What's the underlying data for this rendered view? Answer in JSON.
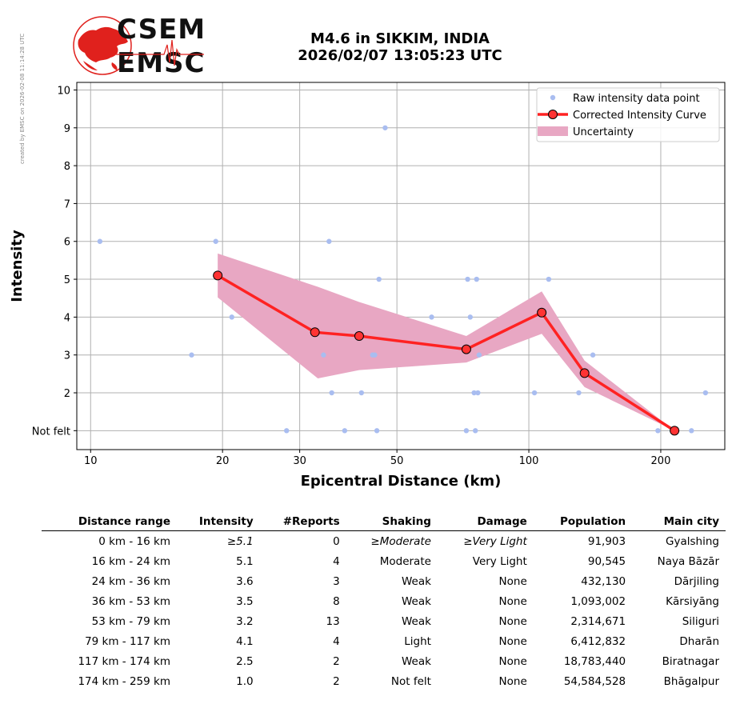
{
  "side_note": "created by EMSC on 2026-02-08 11:14:28 UTC",
  "logo": {
    "top_word": "CSEM",
    "bottom_word": "EMSC",
    "colors": {
      "red": "#e0211d",
      "dark": "#1a0a0a"
    }
  },
  "title": {
    "line1": "M4.6 in SIKKIM, INDIA",
    "line2": "2026/02/07 13:05:23 UTC"
  },
  "colors": {
    "raw": "#a9bdf0",
    "curve": "#ff2222",
    "marker": "#ff3333",
    "uncertainty": "#e8a7c3",
    "grid": "#b0b0b0"
  },
  "chart_data": {
    "type": "scatter",
    "xlabel": "Epicentral Distance (km)",
    "ylabel": "Intensity",
    "xscale": "log",
    "xlim": [
      9.3,
      280
    ],
    "ylim": [
      0.5,
      10.2
    ],
    "xticks": [
      10,
      20,
      30,
      50,
      100,
      200
    ],
    "yticks": [
      {
        "value": 1,
        "label": "Not felt"
      },
      {
        "value": 2,
        "label": "2"
      },
      {
        "value": 3,
        "label": "3"
      },
      {
        "value": 4,
        "label": "4"
      },
      {
        "value": 5,
        "label": "5"
      },
      {
        "value": 6,
        "label": "6"
      },
      {
        "value": 7,
        "label": "7"
      },
      {
        "value": 8,
        "label": "8"
      },
      {
        "value": 9,
        "label": "9"
      },
      {
        "value": 10,
        "label": "10"
      }
    ],
    "grid": true,
    "legend_placement": "top-right",
    "legend": [
      "Raw intensity data point",
      "Corrected Intensity Curve",
      "Uncertainty"
    ],
    "raw_points": [
      [
        10.5,
        6
      ],
      [
        17,
        3
      ],
      [
        19.3,
        6
      ],
      [
        21,
        4
      ],
      [
        28,
        1
      ],
      [
        34,
        3
      ],
      [
        35,
        6
      ],
      [
        35.5,
        2
      ],
      [
        38,
        1
      ],
      [
        41.5,
        2
      ],
      [
        44,
        3
      ],
      [
        44.5,
        3
      ],
      [
        45,
        1
      ],
      [
        45.5,
        5
      ],
      [
        47,
        9
      ],
      [
        60,
        4
      ],
      [
        72,
        1
      ],
      [
        72.5,
        5
      ],
      [
        73.5,
        4
      ],
      [
        75,
        2
      ],
      [
        75.5,
        1
      ],
      [
        76,
        5
      ],
      [
        76.5,
        2
      ],
      [
        77,
        3
      ],
      [
        103,
        2
      ],
      [
        111,
        5
      ],
      [
        130,
        2
      ],
      [
        140,
        3
      ],
      [
        197,
        1
      ],
      [
        235,
        1
      ],
      [
        253,
        2
      ]
    ],
    "series": [
      {
        "name": "Corrected Intensity Curve",
        "x": [
          19.5,
          32.5,
          41,
          72,
          107,
          134,
          215
        ],
        "y": [
          5.1,
          3.6,
          3.5,
          3.15,
          4.12,
          2.52,
          1.0
        ]
      }
    ],
    "uncertainty": {
      "x": [
        19.5,
        33,
        41,
        72,
        107,
        134,
        215
      ],
      "upper": [
        5.68,
        4.8,
        4.4,
        3.5,
        4.68,
        2.85,
        1.0
      ],
      "lower": [
        4.52,
        2.38,
        2.6,
        2.8,
        3.56,
        2.15,
        1.0
      ]
    }
  },
  "table": {
    "headers": [
      "Distance range",
      "Intensity",
      "#Reports",
      "Shaking",
      "Damage",
      "Population",
      "Main city"
    ],
    "rows": [
      [
        "0 km -   16 km",
        "≥5.1",
        "0",
        "≥Moderate",
        "≥Very Light",
        "91,903",
        "Gyalshing"
      ],
      [
        "16 km -   24 km",
        "5.1",
        "4",
        "Moderate",
        "Very Light",
        "90,545",
        "Naya Bāzār"
      ],
      [
        "24 km -   36 km",
        "3.6",
        "3",
        "Weak",
        "None",
        "432,130",
        "Dārjiling"
      ],
      [
        "36 km -   53 km",
        "3.5",
        "8",
        "Weak",
        "None",
        "1,093,002",
        "Kārsiyāng"
      ],
      [
        "53 km -   79 km",
        "3.2",
        "13",
        "Weak",
        "None",
        "2,314,671",
        "Siliguri"
      ],
      [
        "79 km -  117 km",
        "4.1",
        "4",
        "Light",
        "None",
        "6,412,832",
        "Dharān"
      ],
      [
        "117 km -  174 km",
        "2.5",
        "2",
        "Weak",
        "None",
        "18,783,440",
        "Biratnagar"
      ],
      [
        "174 km -  259 km",
        "1.0",
        "2",
        "Not felt",
        "None",
        "54,584,528",
        "Bhāgalpur"
      ]
    ]
  }
}
